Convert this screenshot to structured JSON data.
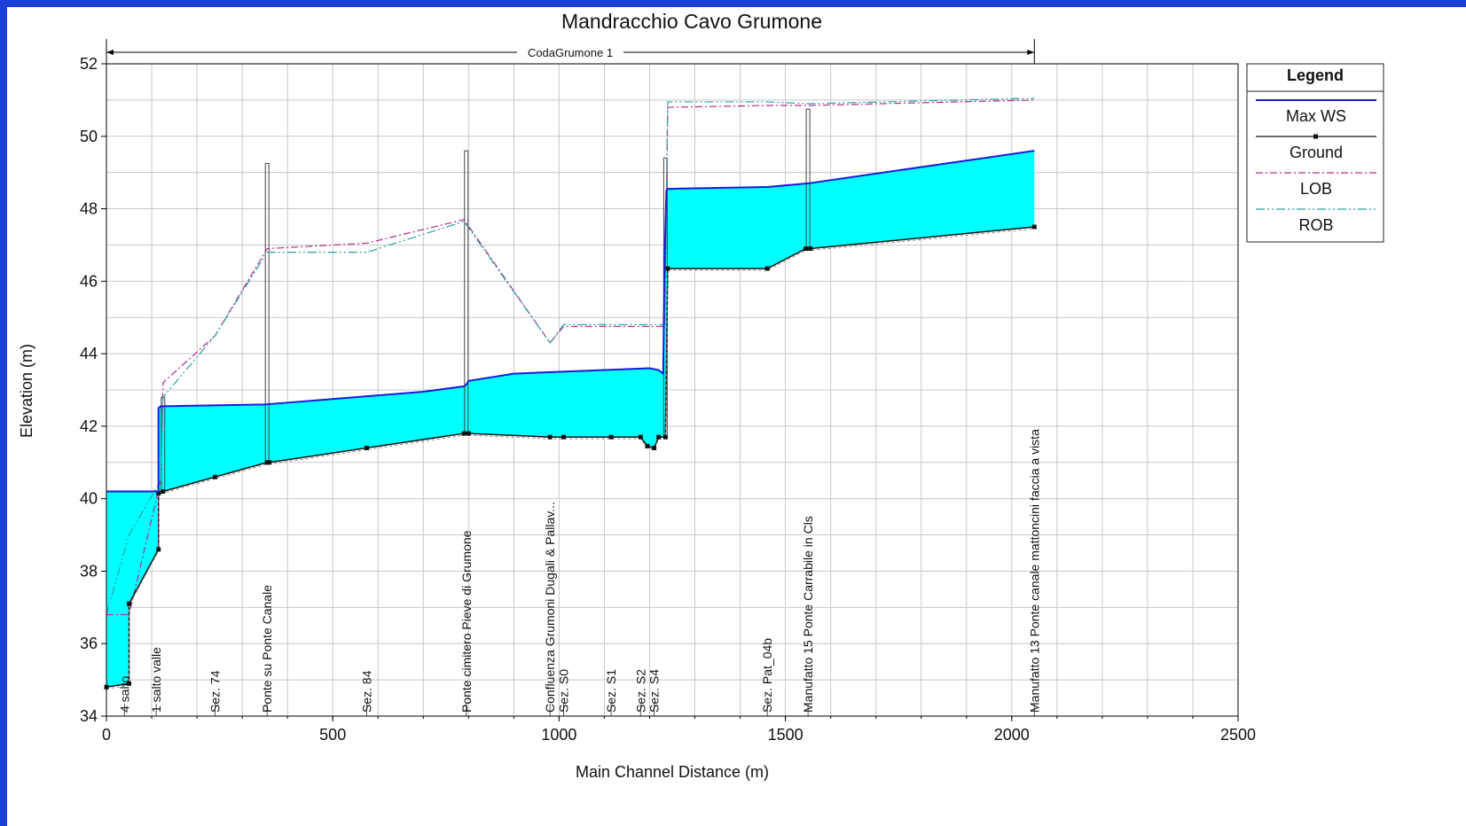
{
  "chart_data": {
    "type": "line",
    "title": "Mandracchio Cavo Grumone",
    "reach_label": "CodaGrumone 1",
    "reach_range": [
      0,
      2050
    ],
    "xlabel": "Main Channel Distance (m)",
    "ylabel": "Elevation (m)",
    "xlim": [
      0,
      2500
    ],
    "ylim": [
      34,
      52
    ],
    "x_ticks": [
      0,
      500,
      1000,
      1500,
      2000,
      2500
    ],
    "y_ticks": [
      34,
      36,
      38,
      40,
      42,
      44,
      46,
      48,
      50,
      52
    ],
    "x_tick_labels": [
      "0",
      "500",
      "1000",
      "1500",
      "2000",
      "2500"
    ],
    "y_tick_labels": [
      "34",
      "36",
      "38",
      "40",
      "42",
      "44",
      "46",
      "48",
      "50",
      "52"
    ],
    "grid": true,
    "legend": {
      "title": "Legend",
      "position": "right",
      "entries": [
        "Max WS",
        "Ground",
        "LOB",
        "ROB"
      ]
    },
    "colors": {
      "max_ws": "#1a1ad6",
      "water_fill": "#00ffff",
      "ground": "#111111",
      "lob": "#b0308c",
      "rob": "#2aa0a0",
      "structure": "#444444",
      "grid": "#c8c8c8",
      "background": "#1c3fd6"
    },
    "series": [
      {
        "name": "Max WS",
        "x": [
          0,
          115,
          115,
          120,
          125,
          350,
          400,
          500,
          600,
          700,
          790,
          795,
          800,
          900,
          1000,
          1100,
          1200,
          1220,
          1230,
          1233,
          1237,
          1240,
          1460,
          1550,
          2050
        ],
        "y": [
          40.2,
          40.2,
          42.5,
          42.55,
          42.55,
          42.6,
          42.65,
          42.75,
          42.85,
          42.95,
          43.1,
          43.15,
          43.25,
          43.45,
          43.5,
          43.55,
          43.6,
          43.55,
          43.45,
          46.5,
          48.5,
          48.55,
          48.6,
          48.7,
          49.6
        ]
      },
      {
        "name": "Ground",
        "x": [
          0,
          50,
          50,
          115,
          115,
          125,
          240,
          355,
          360,
          575,
          790,
          800,
          980,
          1010,
          1115,
          1180,
          1195,
          1210,
          1220,
          1235,
          1240,
          1460,
          1545,
          1555,
          2050
        ],
        "y": [
          34.8,
          34.9,
          37.1,
          38.6,
          40.15,
          40.2,
          40.6,
          41.0,
          41.0,
          41.4,
          41.8,
          41.8,
          41.7,
          41.7,
          41.7,
          41.7,
          41.45,
          41.4,
          41.7,
          41.7,
          46.35,
          46.35,
          46.9,
          46.9,
          47.5
        ]
      },
      {
        "name": "LOB",
        "x": [
          0,
          50,
          120,
          125,
          240,
          355,
          575,
          790,
          980,
          1010,
          1115,
          1233,
          1240,
          1460,
          1550,
          2050
        ],
        "y": [
          36.8,
          36.8,
          40.5,
          43.2,
          44.5,
          46.9,
          47.05,
          47.7,
          44.3,
          44.75,
          44.75,
          44.75,
          50.8,
          50.85,
          50.85,
          51.0
        ]
      },
      {
        "name": "ROB",
        "x": [
          0,
          50,
          120,
          125,
          240,
          355,
          575,
          790,
          980,
          1010,
          1115,
          1233,
          1240,
          1460,
          1550,
          2050
        ],
        "y": [
          36.8,
          39.0,
          40.5,
          42.8,
          44.5,
          46.8,
          46.8,
          47.65,
          44.3,
          44.8,
          44.8,
          44.8,
          50.95,
          50.95,
          50.9,
          51.05
        ]
      }
    ],
    "structures": [
      {
        "x": 125,
        "top": 42.8
      },
      {
        "x": 355,
        "top": 49.25
      },
      {
        "x": 795,
        "top": 49.6
      },
      {
        "x": 1235,
        "top": 49.4
      },
      {
        "x": 1550,
        "top": 50.75
      }
    ],
    "section_labels": [
      {
        "x": 40,
        "text": "4 salto"
      },
      {
        "x": 110,
        "text": "1 salto valle"
      },
      {
        "x": 240,
        "text": "Sez. 74"
      },
      {
        "x": 355,
        "text": "Ponte su Ponte Canale"
      },
      {
        "x": 575,
        "text": "Sez. 84"
      },
      {
        "x": 795,
        "text": "Ponte cimitero Pieve di Grumone"
      },
      {
        "x": 980,
        "text": "Confluenza Grumoni Dugali & Pallav..."
      },
      {
        "x": 1010,
        "text": "Sez. S0"
      },
      {
        "x": 1115,
        "text": "Sez. S1"
      },
      {
        "x": 1180,
        "text": "Sez. S2"
      },
      {
        "x": 1210,
        "text": "Sez. S4"
      },
      {
        "x": 1460,
        "text": "Sez. Pat_04b"
      },
      {
        "x": 1550,
        "text": "Manufatto 15 Ponte Carrabile in Cls"
      },
      {
        "x": 2050,
        "text": "Manufatto 13 Ponte canale mattoncini faccia a vista"
      }
    ]
  }
}
